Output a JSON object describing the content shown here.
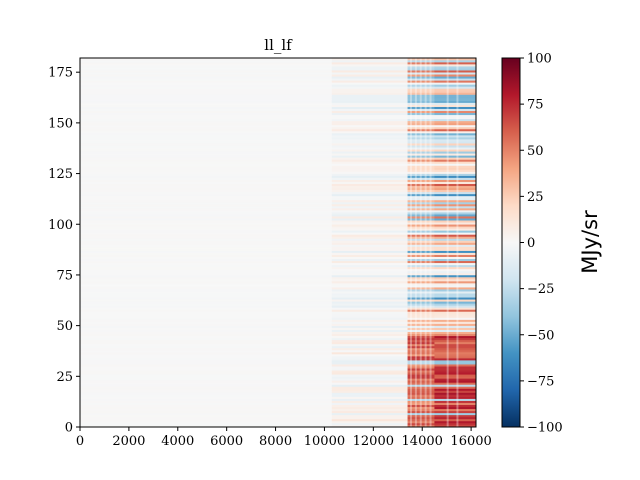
{
  "chart_data": {
    "type": "heatmap",
    "title": "ll_lf",
    "xlabel": "",
    "ylabel": "",
    "xlim": [
      0,
      16200
    ],
    "ylim": [
      0,
      182
    ],
    "x_ticks": [
      0,
      2000,
      4000,
      6000,
      8000,
      10000,
      12000,
      14000,
      16000
    ],
    "y_ticks": [
      0,
      25,
      50,
      75,
      100,
      125,
      150,
      175
    ],
    "x_tick_labels": [
      "0",
      "2000",
      "4000",
      "6000",
      "8000",
      "10000",
      "12000",
      "14000",
      "16000"
    ],
    "y_tick_labels": [
      "0",
      "25",
      "50",
      "75",
      "100",
      "125",
      "150",
      "175"
    ],
    "colorbar": {
      "label": "MJy/sr",
      "colormap": "RdBu_r",
      "vmin": -100,
      "vmax": 100,
      "ticks": [
        -100,
        -75,
        -50,
        -25,
        0,
        25,
        50,
        75,
        100
      ],
      "tick_labels": [
        "−100",
        "−75",
        "−50",
        "−25",
        "0",
        "25",
        "50",
        "75",
        "100"
      ]
    },
    "regions": [
      {
        "x": [
          0,
          10300
        ],
        "description_value": 2
      },
      {
        "x": [
          10300,
          13400
        ],
        "description_value": 10
      },
      {
        "x": [
          13400,
          14500
        ],
        "description_value": 60
      },
      {
        "x": [
          14500,
          16200
        ],
        "description_value": 70
      }
    ],
    "grid": false
  }
}
